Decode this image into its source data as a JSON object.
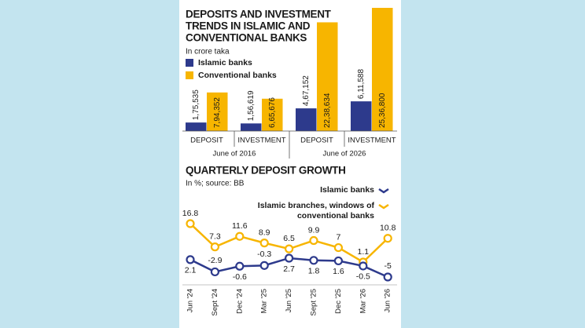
{
  "chart_data": [
    {
      "type": "grouped_bar",
      "title": [
        "DEPOSITS AND INVESTMENT",
        "TRENDS IN ISLAMIC AND",
        "CONVENTIONAL BANKS"
      ],
      "subtitle": "In crore taka",
      "categories": [
        "DEPOSIT",
        "INVESTMENT",
        "DEPOSIT",
        "INVESTMENT"
      ],
      "group_labels": [
        "June of 2016",
        "June of 2026"
      ],
      "series": [
        {
          "name": "Islamic banks",
          "color": "#2d3a8c",
          "values": [
            175535,
            156619,
            467152,
            611588
          ],
          "value_labels": [
            "1,75,535",
            "1,56,619",
            "4,67,152",
            "6,11,588"
          ]
        },
        {
          "name": "Conventional banks",
          "color": "#f7b500",
          "values": [
            794352,
            665676,
            2238634,
            2536800
          ],
          "value_labels": [
            "7,94,352",
            "6,65,676",
            "22,38,634",
            "25,36,800"
          ]
        }
      ]
    },
    {
      "type": "line",
      "title": "QUARTERLY DEPOSIT GROWTH",
      "subtitle": "In %; source: BB",
      "categories": [
        "Jun '24",
        "Sept '24",
        "Dec '24",
        "Mar '25",
        "Jun '25",
        "Sept '25",
        "Dec '25",
        "Mar '26",
        "Jun '26"
      ],
      "series": [
        {
          "name": "Islamic banks",
          "color": "#2d3a8c",
          "values": [
            2.1,
            -2.9,
            -0.6,
            -0.3,
            2.7,
            1.8,
            1.6,
            -0.5,
            -5
          ]
        },
        {
          "name": "Islamic branches, windows of conventional banks",
          "color": "#f7b500",
          "values": [
            16.8,
            7.3,
            11.6,
            8.9,
            6.5,
            9.9,
            7,
            1.1,
            10.8
          ]
        }
      ]
    }
  ]
}
